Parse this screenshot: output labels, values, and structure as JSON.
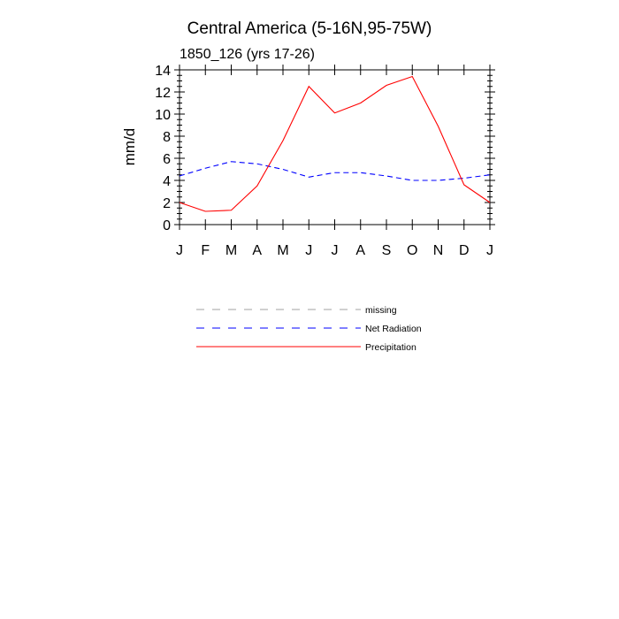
{
  "chart_data": {
    "type": "line",
    "title": "Central America (5-16N,95-75W)",
    "subtitle": "1850_126 (yrs 17-26)",
    "xlabel": "",
    "ylabel": "mm/d",
    "ylim": [
      0,
      14
    ],
    "yticks": [
      0,
      2,
      4,
      6,
      8,
      10,
      12,
      14
    ],
    "categories": [
      "J",
      "F",
      "M",
      "A",
      "M",
      "J",
      "J",
      "A",
      "S",
      "O",
      "N",
      "D",
      "J"
    ],
    "grid": false,
    "legend_position": "below",
    "series": [
      {
        "name": "Net Radiation",
        "color": "#0000ff",
        "style": "dashed",
        "values": [
          4.4,
          5.1,
          5.7,
          5.5,
          5.0,
          4.3,
          4.7,
          4.7,
          4.4,
          4.0,
          4.0,
          4.2,
          4.5
        ]
      },
      {
        "name": "Precipitation",
        "color": "#ff0000",
        "style": "solid",
        "values": [
          2.0,
          1.2,
          1.3,
          3.5,
          7.6,
          12.5,
          10.1,
          11.0,
          12.6,
          13.4,
          8.9,
          3.6,
          2.0
        ]
      }
    ],
    "legend": [
      {
        "label": "missing",
        "color": "#a0a0a0",
        "style": "dashed"
      },
      {
        "label": "Net Radiation",
        "color": "#0000ff",
        "style": "dashed"
      },
      {
        "label": "Precipitation",
        "color": "#ff0000",
        "style": "solid"
      }
    ]
  }
}
